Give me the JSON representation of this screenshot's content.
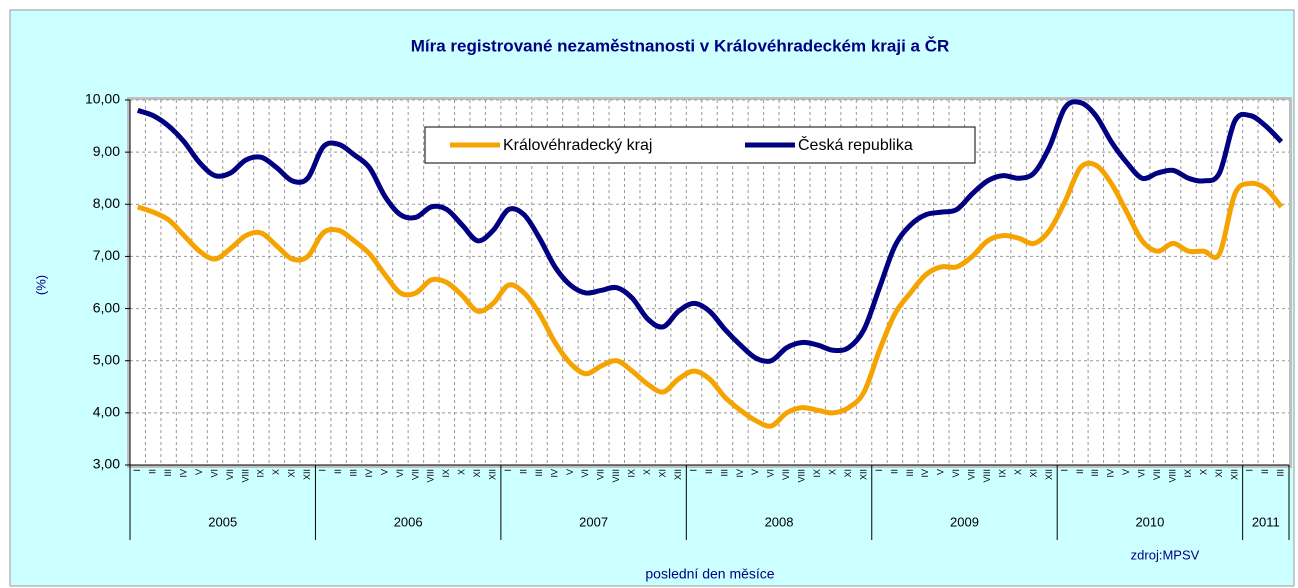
{
  "chart_data": {
    "type": "line",
    "title": "Míra registrované nezaměstnanosti v Královéhradeckém kraji a ČR",
    "y_label": "(%)",
    "x_label": "poslední den měsíce",
    "source": "zdroj:MPSV",
    "categories": [
      "I",
      "II",
      "III",
      "IV",
      "V",
      "VI",
      "VII",
      "VIII",
      "IX",
      "X",
      "XI",
      "XII",
      "I",
      "II",
      "III",
      "IV",
      "V",
      "VI",
      "VII",
      "VIII",
      "IX",
      "X",
      "XI",
      "XII",
      "I",
      "II",
      "III",
      "IV",
      "V",
      "VI",
      "VII",
      "VIII",
      "IX",
      "X",
      "XI",
      "XII",
      "I",
      "II",
      "III",
      "IV",
      "V",
      "VI",
      "VII",
      "VIII",
      "IX",
      "X",
      "XI",
      "XII",
      "I",
      "II",
      "III",
      "IV",
      "V",
      "VI",
      "VII",
      "VIII",
      "IX",
      "X",
      "XI",
      "XII",
      "I",
      "II",
      "III",
      "IV",
      "V",
      "VI",
      "VII",
      "VIII",
      "IX",
      "X",
      "XI",
      "XII",
      "I",
      "II",
      "III"
    ],
    "years": [
      "2005",
      "2006",
      "2007",
      "2008",
      "2009",
      "2010",
      "2011"
    ],
    "series": [
      {
        "name": "Královéhradecký kraj",
        "color": "#f5a300",
        "values": [
          7.95,
          7.85,
          7.7,
          7.4,
          7.1,
          6.95,
          7.15,
          7.4,
          7.45,
          7.2,
          6.95,
          7.0,
          7.45,
          7.5,
          7.3,
          7.05,
          6.65,
          6.3,
          6.3,
          6.55,
          6.5,
          6.25,
          5.95,
          6.1,
          6.45,
          6.3,
          5.9,
          5.35,
          4.95,
          4.75,
          4.9,
          5.0,
          4.8,
          4.55,
          4.4,
          4.65,
          4.8,
          4.65,
          4.3,
          4.05,
          3.85,
          3.75,
          4.0,
          4.1,
          4.05,
          4.0,
          4.1,
          4.4,
          5.2,
          5.9,
          6.3,
          6.65,
          6.8,
          6.8,
          7.0,
          7.3,
          7.4,
          7.35,
          7.25,
          7.5,
          8.05,
          8.7,
          8.75,
          8.4,
          7.85,
          7.3,
          7.1,
          7.25,
          7.1,
          7.1,
          7.05,
          8.2,
          8.4,
          8.3,
          7.95
        ]
      },
      {
        "name": "Česká republika",
        "color": "#000080",
        "values": [
          9.8,
          9.7,
          9.5,
          9.2,
          8.8,
          8.55,
          8.6,
          8.85,
          8.9,
          8.7,
          8.45,
          8.5,
          9.1,
          9.15,
          8.95,
          8.7,
          8.15,
          7.8,
          7.75,
          7.95,
          7.9,
          7.6,
          7.3,
          7.5,
          7.9,
          7.8,
          7.35,
          6.8,
          6.45,
          6.3,
          6.35,
          6.4,
          6.2,
          5.8,
          5.65,
          5.95,
          6.1,
          5.95,
          5.6,
          5.3,
          5.05,
          5.0,
          5.25,
          5.35,
          5.3,
          5.2,
          5.25,
          5.6,
          6.4,
          7.2,
          7.6,
          7.8,
          7.85,
          7.9,
          8.2,
          8.45,
          8.55,
          8.5,
          8.6,
          9.1,
          9.85,
          9.95,
          9.7,
          9.2,
          8.8,
          8.5,
          8.6,
          8.65,
          8.5,
          8.45,
          8.6,
          9.6,
          9.7,
          9.5,
          9.2
        ]
      }
    ],
    "ylim": [
      3,
      10
    ],
    "yticks": [
      {
        "value": 3,
        "label": "3,00"
      },
      {
        "value": 4,
        "label": "4,00"
      },
      {
        "value": 5,
        "label": "5,00"
      },
      {
        "value": 6,
        "label": "6,00"
      },
      {
        "value": 7,
        "label": "7,00"
      },
      {
        "value": 8,
        "label": "8,00"
      },
      {
        "value": 9,
        "label": "9,00"
      },
      {
        "value": 10,
        "label": "10,00"
      }
    ],
    "grid": true,
    "legend": "top"
  }
}
